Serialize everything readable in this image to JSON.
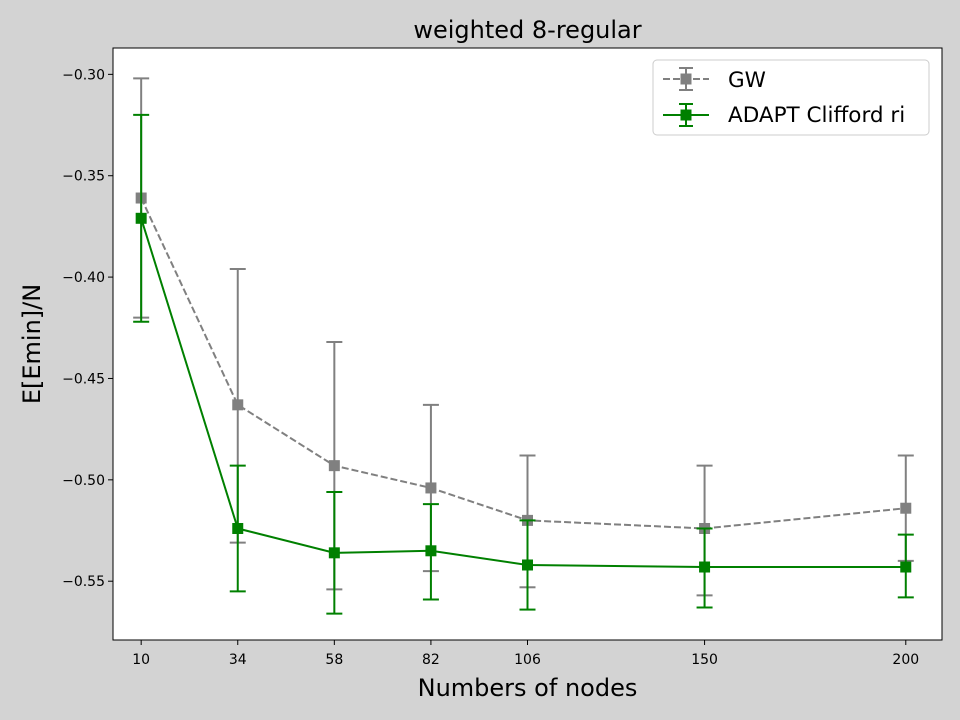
{
  "chart_data": {
    "type": "line",
    "title": "weighted 8-regular",
    "xlabel": "Numbers of nodes",
    "ylabel": "E[Emin]/N",
    "xlim": [
      3,
      209
    ],
    "ylim": [
      -0.579,
      -0.287
    ],
    "x_ticks": [
      10,
      34,
      58,
      82,
      106,
      150,
      200
    ],
    "x_tick_labels": [
      "10",
      "34",
      "58",
      "82",
      "106",
      "150",
      "200"
    ],
    "y_ticks": [
      -0.3,
      -0.35,
      -0.4,
      -0.45,
      -0.5,
      -0.55
    ],
    "y_tick_labels": [
      "−0.30",
      "−0.35",
      "−0.40",
      "−0.45",
      "−0.50",
      "−0.55"
    ],
    "x": [
      10,
      34,
      58,
      82,
      106,
      150,
      200
    ],
    "legend_position": "top-right",
    "grid": false,
    "series": [
      {
        "name": "GW",
        "color": "#808080",
        "line_style": "dashed",
        "marker": "square",
        "values": [
          -0.361,
          -0.463,
          -0.493,
          -0.504,
          -0.52,
          -0.524,
          -0.514
        ],
        "err_low": [
          -0.42,
          -0.531,
          -0.554,
          -0.545,
          -0.553,
          -0.557,
          -0.54
        ],
        "err_high": [
          -0.302,
          -0.396,
          -0.432,
          -0.463,
          -0.488,
          -0.493,
          -0.488
        ]
      },
      {
        "name": "ADAPT Clifford ri",
        "color": "#008000",
        "line_style": "solid",
        "marker": "square",
        "values": [
          -0.371,
          -0.524,
          -0.536,
          -0.535,
          -0.542,
          -0.543,
          -0.543
        ],
        "err_low": [
          -0.422,
          -0.555,
          -0.566,
          -0.559,
          -0.564,
          -0.563,
          -0.558
        ],
        "err_high": [
          -0.32,
          -0.493,
          -0.506,
          -0.512,
          -0.52,
          -0.524,
          -0.527
        ]
      }
    ]
  }
}
